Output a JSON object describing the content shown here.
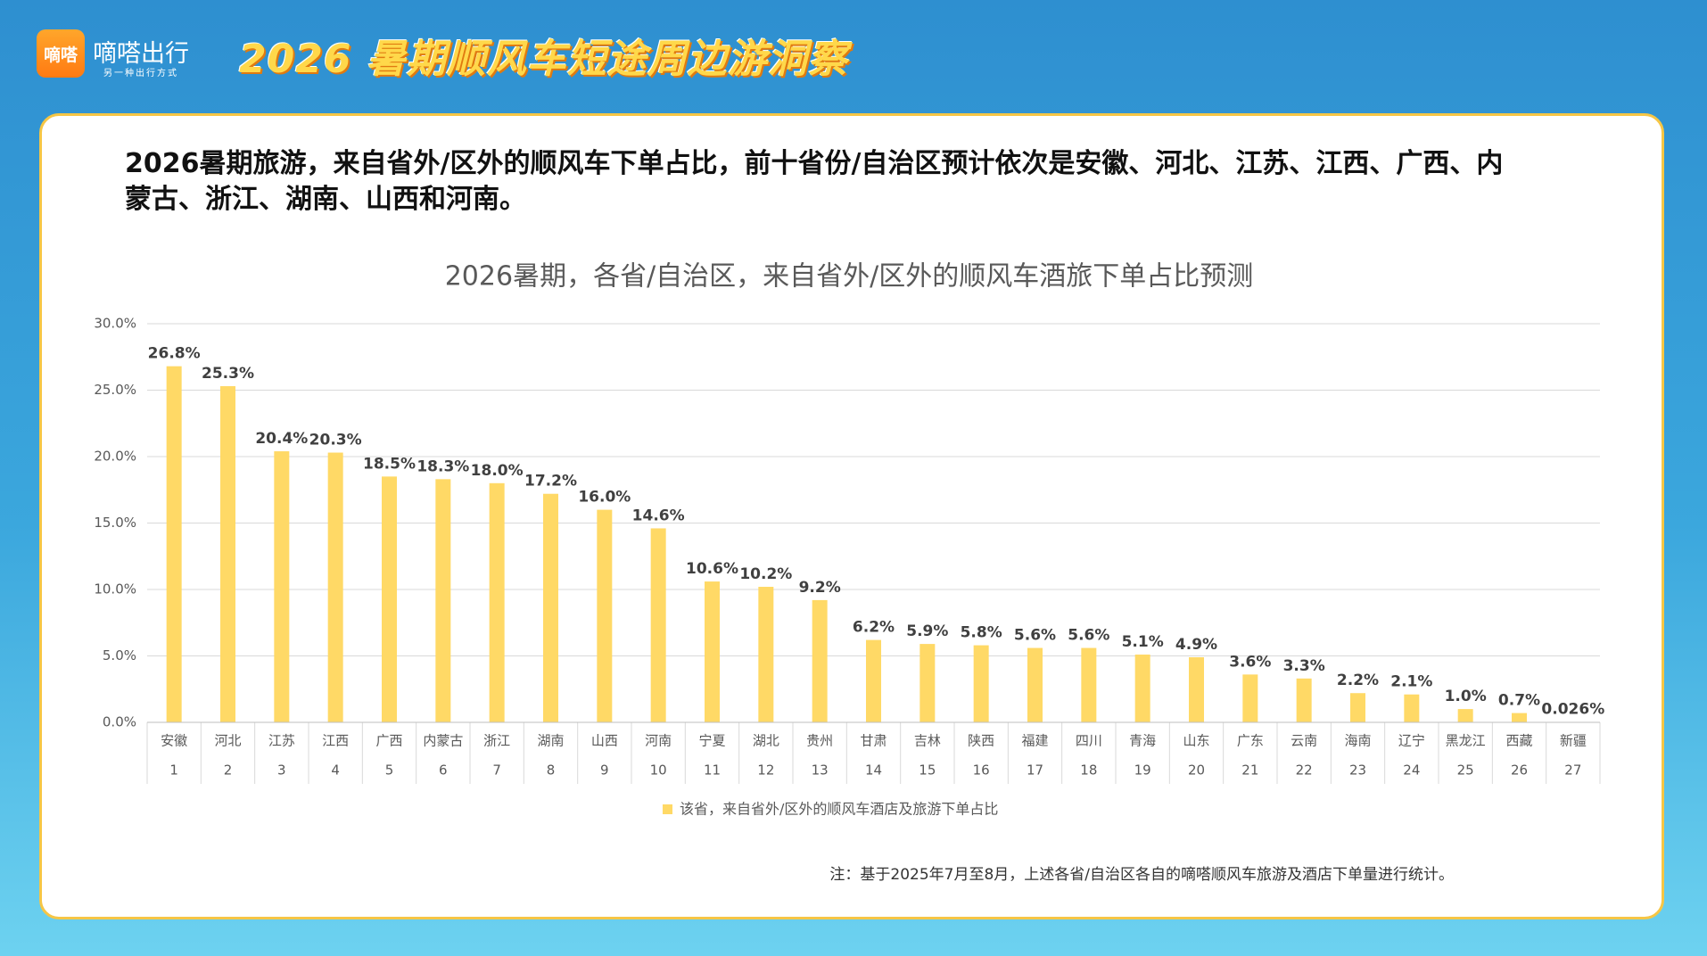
{
  "header": {
    "logo_text": "嘀嗒",
    "brand": "嘀嗒出行",
    "slogan": "另一种出行方式",
    "title": "2026 暑期顺风车短途周边游洞察"
  },
  "headline": "2026暑期旅游，来自省外/区外的顺风车下单占比，前十省份/自治区预计依次是安徽、河北、江苏、江西、广西、内蒙古、浙江、湖南、山西和河南。",
  "note": "注：基于2025年7月至8月，上述各省/自治区各自的嘀嗒顺风车旅游及酒店下单量进行统计。",
  "chart_data": {
    "type": "bar",
    "title": "2026暑期，各省/自治区，来自省外/区外的顺风车酒旅下单占比预测",
    "categories": [
      "安徽",
      "河北",
      "江苏",
      "江西",
      "广西",
      "内蒙古",
      "浙江",
      "湖南",
      "山西",
      "河南",
      "宁夏",
      "湖北",
      "贵州",
      "甘肃",
      "吉林",
      "陕西",
      "福建",
      "四川",
      "青海",
      "山东",
      "广东",
      "云南",
      "海南",
      "辽宁",
      "黑龙江",
      "西藏",
      "新疆"
    ],
    "ranks": [
      1,
      2,
      3,
      4,
      5,
      6,
      7,
      8,
      9,
      10,
      11,
      12,
      13,
      14,
      15,
      16,
      17,
      18,
      19,
      20,
      21,
      22,
      23,
      24,
      25,
      26,
      27
    ],
    "series": [
      {
        "name": "该省，来自省外/区外的顺风车酒店及旅游下单占比",
        "color": "#ffd966",
        "values": [
          26.8,
          25.3,
          20.4,
          20.3,
          18.5,
          18.3,
          18.0,
          17.2,
          16.0,
          14.6,
          10.6,
          10.2,
          9.2,
          6.2,
          5.9,
          5.8,
          5.6,
          5.6,
          5.1,
          4.9,
          3.6,
          3.3,
          2.2,
          2.1,
          1.0,
          0.7,
          0.026
        ],
        "value_labels": [
          "26.8%",
          "25.3%",
          "20.4%",
          "20.3%",
          "18.5%",
          "18.3%",
          "18.0%",
          "17.2%",
          "16.0%",
          "14.6%",
          "10.6%",
          "10.2%",
          "9.2%",
          "6.2%",
          "5.9%",
          "5.8%",
          "5.6%",
          "5.6%",
          "5.1%",
          "4.9%",
          "3.6%",
          "3.3%",
          "2.2%",
          "2.1%",
          "1.0%",
          "0.7%",
          "0.026%"
        ]
      }
    ],
    "ylim": [
      0,
      30
    ],
    "yticks": [
      {
        "value": 0,
        "label": "0.0%"
      },
      {
        "value": 5,
        "label": "5.0%"
      },
      {
        "value": 10,
        "label": "10.0%"
      },
      {
        "value": 15,
        "label": "15.0%"
      },
      {
        "value": 20,
        "label": "20.0%"
      },
      {
        "value": 25,
        "label": "25.0%"
      },
      {
        "value": 30,
        "label": "30.0%"
      }
    ],
    "grid": true,
    "legend": "bottom"
  }
}
